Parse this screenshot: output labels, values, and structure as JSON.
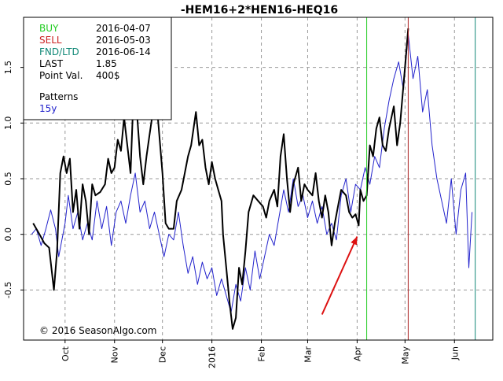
{
  "chart_data": {
    "type": "line",
    "title": "-HEM16+2*HEN16-HEQ16",
    "ylim": [
      -0.95,
      1.95
    ],
    "yticks": [
      -0.5,
      0.0,
      0.5,
      1.0,
      1.5
    ],
    "ytick_labels": [
      "-0.5",
      "0.0",
      "0.5",
      "1.0",
      "1.5"
    ],
    "grid": true,
    "x_range": [
      "2015-09-05",
      "2016-06-25"
    ],
    "xticks": [
      {
        "label": "Oct",
        "date": "2015-10-01"
      },
      {
        "label": "Nov",
        "date": "2015-11-01"
      },
      {
        "label": "Dec",
        "date": "2015-12-01"
      },
      {
        "label": "2016",
        "date": "2016-01-01"
      },
      {
        "label": "Feb",
        "date": "2016-02-01"
      },
      {
        "label": "Mar",
        "date": "2016-03-01"
      },
      {
        "label": "Apr",
        "date": "2016-04-01"
      },
      {
        "label": "May",
        "date": "2016-05-01"
      },
      {
        "label": "Jun",
        "date": "2016-06-01"
      }
    ],
    "info_box": {
      "rows": [
        {
          "label": "BUY",
          "value": "2016-04-07",
          "color": "#22cc22"
        },
        {
          "label": "SELL",
          "value": "2016-05-03",
          "color": "#cc2222"
        },
        {
          "label": "FND/LTD",
          "value": "2016-06-14",
          "color": "#118877"
        },
        {
          "label": "LAST",
          "value": "1.85",
          "color": "#000000"
        },
        {
          "label": "Point Val.",
          "value": "400$",
          "color": "#000000"
        }
      ],
      "patterns_label": "Patterns",
      "patterns_value": "15y",
      "patterns_color": "#2222cc"
    },
    "vlines": [
      {
        "date": "2016-04-07",
        "color": "#22cc22"
      },
      {
        "date": "2016-05-03",
        "color": "#aa2222"
      },
      {
        "date": "2016-06-14",
        "color": "#118877"
      }
    ],
    "arrow": {
      "from": {
        "date": "2016-03-10",
        "y": -0.72
      },
      "to": {
        "date": "2016-04-01",
        "y": -0.02
      },
      "color": "#dd1111"
    },
    "copyright": "© 2016 SeasonAlgo.com",
    "series": [
      {
        "color": "#000000",
        "width": 2,
        "points": [
          [
            "2015-09-11",
            0.1
          ],
          [
            "2015-09-15",
            0.0
          ],
          [
            "2015-09-18",
            -0.08
          ],
          [
            "2015-09-21",
            -0.12
          ],
          [
            "2015-09-24",
            -0.5
          ],
          [
            "2015-09-26",
            -0.15
          ],
          [
            "2015-09-28",
            0.55
          ],
          [
            "2015-09-30",
            0.7
          ],
          [
            "2015-10-02",
            0.55
          ],
          [
            "2015-10-04",
            0.68
          ],
          [
            "2015-10-06",
            0.2
          ],
          [
            "2015-10-08",
            0.4
          ],
          [
            "2015-10-10",
            0.05
          ],
          [
            "2015-10-12",
            0.45
          ],
          [
            "2015-10-14",
            0.3
          ],
          [
            "2015-10-16",
            0.0
          ],
          [
            "2015-10-18",
            0.45
          ],
          [
            "2015-10-20",
            0.35
          ],
          [
            "2015-10-23",
            0.38
          ],
          [
            "2015-10-26",
            0.45
          ],
          [
            "2015-10-28",
            0.68
          ],
          [
            "2015-10-30",
            0.55
          ],
          [
            "2015-11-01",
            0.6
          ],
          [
            "2015-11-03",
            0.85
          ],
          [
            "2015-11-05",
            0.75
          ],
          [
            "2015-11-07",
            1.05
          ],
          [
            "2015-11-09",
            0.8
          ],
          [
            "2015-11-11",
            0.55
          ],
          [
            "2015-11-13",
            1.3
          ],
          [
            "2015-11-15",
            1.1
          ],
          [
            "2015-11-17",
            0.7
          ],
          [
            "2015-11-19",
            0.45
          ],
          [
            "2015-11-21",
            0.7
          ],
          [
            "2015-11-23",
            0.9
          ],
          [
            "2015-11-25",
            1.1
          ],
          [
            "2015-11-27",
            1.25
          ],
          [
            "2015-11-29",
            0.9
          ],
          [
            "2015-12-01",
            0.55
          ],
          [
            "2015-12-03",
            0.1
          ],
          [
            "2015-12-05",
            0.05
          ],
          [
            "2015-12-08",
            0.05
          ],
          [
            "2015-12-10",
            0.3
          ],
          [
            "2015-12-13",
            0.4
          ],
          [
            "2015-12-15",
            0.55
          ],
          [
            "2015-12-17",
            0.7
          ],
          [
            "2015-12-19",
            0.8
          ],
          [
            "2015-12-22",
            1.1
          ],
          [
            "2015-12-24",
            0.8
          ],
          [
            "2015-12-26",
            0.85
          ],
          [
            "2015-12-28",
            0.6
          ],
          [
            "2015-12-30",
            0.45
          ],
          [
            "2016-01-01",
            0.65
          ],
          [
            "2016-01-03",
            0.5
          ],
          [
            "2016-01-05",
            0.4
          ],
          [
            "2016-01-07",
            0.3
          ],
          [
            "2016-01-08",
            0.0
          ],
          [
            "2016-01-10",
            -0.3
          ],
          [
            "2016-01-12",
            -0.6
          ],
          [
            "2016-01-14",
            -0.85
          ],
          [
            "2016-01-16",
            -0.75
          ],
          [
            "2016-01-18",
            -0.3
          ],
          [
            "2016-01-20",
            -0.45
          ],
          [
            "2016-01-22",
            -0.15
          ],
          [
            "2016-01-24",
            0.2
          ],
          [
            "2016-01-27",
            0.35
          ],
          [
            "2016-01-30",
            0.3
          ],
          [
            "2016-02-02",
            0.25
          ],
          [
            "2016-02-04",
            0.15
          ],
          [
            "2016-02-06",
            0.3
          ],
          [
            "2016-02-09",
            0.4
          ],
          [
            "2016-02-11",
            0.25
          ],
          [
            "2016-02-13",
            0.7
          ],
          [
            "2016-02-15",
            0.9
          ],
          [
            "2016-02-17",
            0.5
          ],
          [
            "2016-02-19",
            0.2
          ],
          [
            "2016-02-21",
            0.45
          ],
          [
            "2016-02-24",
            0.6
          ],
          [
            "2016-02-26",
            0.3
          ],
          [
            "2016-02-28",
            0.45
          ],
          [
            "2016-03-01",
            0.4
          ],
          [
            "2016-03-04",
            0.35
          ],
          [
            "2016-03-06",
            0.55
          ],
          [
            "2016-03-08",
            0.3
          ],
          [
            "2016-03-10",
            0.15
          ],
          [
            "2016-03-12",
            0.35
          ],
          [
            "2016-03-14",
            0.2
          ],
          [
            "2016-03-16",
            -0.1
          ],
          [
            "2016-03-18",
            0.1
          ],
          [
            "2016-03-20",
            0.25
          ],
          [
            "2016-03-22",
            0.4
          ],
          [
            "2016-03-25",
            0.35
          ],
          [
            "2016-03-27",
            0.2
          ],
          [
            "2016-03-29",
            0.15
          ],
          [
            "2016-03-31",
            0.18
          ],
          [
            "2016-04-02",
            0.08
          ],
          [
            "2016-04-03",
            0.4
          ],
          [
            "2016-04-05",
            0.3
          ],
          [
            "2016-04-07",
            0.35
          ],
          [
            "2016-04-09",
            0.8
          ],
          [
            "2016-04-11",
            0.7
          ],
          [
            "2016-04-13",
            0.95
          ],
          [
            "2016-04-15",
            1.05
          ],
          [
            "2016-04-17",
            0.8
          ],
          [
            "2016-04-19",
            0.75
          ],
          [
            "2016-04-21",
            0.95
          ],
          [
            "2016-04-24",
            1.15
          ],
          [
            "2016-04-26",
            0.8
          ],
          [
            "2016-04-28",
            1.0
          ],
          [
            "2016-05-01",
            1.5
          ],
          [
            "2016-05-03",
            1.85
          ]
        ]
      },
      {
        "color": "#2222cc",
        "width": 1,
        "points": [
          [
            "2015-09-10",
            0.0
          ],
          [
            "2015-09-13",
            0.05
          ],
          [
            "2015-09-16",
            -0.1
          ],
          [
            "2015-09-19",
            0.05
          ],
          [
            "2015-09-22",
            0.22
          ],
          [
            "2015-09-25",
            0.05
          ],
          [
            "2015-09-27",
            -0.2
          ],
          [
            "2015-10-01",
            0.1
          ],
          [
            "2015-10-03",
            0.35
          ],
          [
            "2015-10-06",
            0.05
          ],
          [
            "2015-10-09",
            0.2
          ],
          [
            "2015-10-12",
            -0.05
          ],
          [
            "2015-10-15",
            0.1
          ],
          [
            "2015-10-18",
            -0.05
          ],
          [
            "2015-10-21",
            0.3
          ],
          [
            "2015-10-24",
            0.05
          ],
          [
            "2015-10-27",
            0.25
          ],
          [
            "2015-10-30",
            -0.1
          ],
          [
            "2015-11-02",
            0.2
          ],
          [
            "2015-11-05",
            0.3
          ],
          [
            "2015-11-08",
            0.1
          ],
          [
            "2015-11-11",
            0.35
          ],
          [
            "2015-11-14",
            0.55
          ],
          [
            "2015-11-17",
            0.2
          ],
          [
            "2015-11-20",
            0.3
          ],
          [
            "2015-11-23",
            0.05
          ],
          [
            "2015-11-26",
            0.2
          ],
          [
            "2015-11-29",
            0.0
          ],
          [
            "2015-12-02",
            -0.2
          ],
          [
            "2015-12-05",
            0.0
          ],
          [
            "2015-12-08",
            -0.05
          ],
          [
            "2015-12-11",
            0.2
          ],
          [
            "2015-12-14",
            -0.1
          ],
          [
            "2015-12-17",
            -0.35
          ],
          [
            "2015-12-20",
            -0.2
          ],
          [
            "2015-12-23",
            -0.45
          ],
          [
            "2015-12-26",
            -0.25
          ],
          [
            "2015-12-29",
            -0.4
          ],
          [
            "2016-01-01",
            -0.3
          ],
          [
            "2016-01-04",
            -0.55
          ],
          [
            "2016-01-07",
            -0.4
          ],
          [
            "2016-01-10",
            -0.55
          ],
          [
            "2016-01-13",
            -0.7
          ],
          [
            "2016-01-16",
            -0.45
          ],
          [
            "2016-01-19",
            -0.6
          ],
          [
            "2016-01-22",
            -0.3
          ],
          [
            "2016-01-25",
            -0.5
          ],
          [
            "2016-01-28",
            -0.15
          ],
          [
            "2016-01-31",
            -0.4
          ],
          [
            "2016-02-03",
            -0.2
          ],
          [
            "2016-02-06",
            0.0
          ],
          [
            "2016-02-09",
            -0.1
          ],
          [
            "2016-02-12",
            0.15
          ],
          [
            "2016-02-15",
            0.4
          ],
          [
            "2016-02-18",
            0.2
          ],
          [
            "2016-02-21",
            0.5
          ],
          [
            "2016-02-24",
            0.25
          ],
          [
            "2016-02-27",
            0.35
          ],
          [
            "2016-03-01",
            0.15
          ],
          [
            "2016-03-04",
            0.3
          ],
          [
            "2016-03-07",
            0.1
          ],
          [
            "2016-03-10",
            0.25
          ],
          [
            "2016-03-13",
            0.0
          ],
          [
            "2016-03-16",
            0.1
          ],
          [
            "2016-03-19",
            -0.05
          ],
          [
            "2016-03-22",
            0.35
          ],
          [
            "2016-03-25",
            0.5
          ],
          [
            "2016-03-28",
            0.2
          ],
          [
            "2016-03-31",
            0.45
          ],
          [
            "2016-04-03",
            0.4
          ],
          [
            "2016-04-06",
            0.6
          ],
          [
            "2016-04-09",
            0.45
          ],
          [
            "2016-04-12",
            0.7
          ],
          [
            "2016-04-15",
            0.6
          ],
          [
            "2016-04-18",
            0.95
          ],
          [
            "2016-04-21",
            1.2
          ],
          [
            "2016-04-24",
            1.4
          ],
          [
            "2016-04-27",
            1.55
          ],
          [
            "2016-04-30",
            1.3
          ],
          [
            "2016-05-03",
            1.8
          ],
          [
            "2016-05-06",
            1.4
          ],
          [
            "2016-05-09",
            1.6
          ],
          [
            "2016-05-12",
            1.1
          ],
          [
            "2016-05-15",
            1.3
          ],
          [
            "2016-05-18",
            0.8
          ],
          [
            "2016-05-21",
            0.5
          ],
          [
            "2016-05-24",
            0.3
          ],
          [
            "2016-05-27",
            0.1
          ],
          [
            "2016-05-30",
            0.5
          ],
          [
            "2016-06-02",
            0.0
          ],
          [
            "2016-06-05",
            0.4
          ],
          [
            "2016-06-08",
            0.55
          ],
          [
            "2016-06-10",
            -0.3
          ],
          [
            "2016-06-12",
            0.2
          ]
        ]
      }
    ]
  }
}
